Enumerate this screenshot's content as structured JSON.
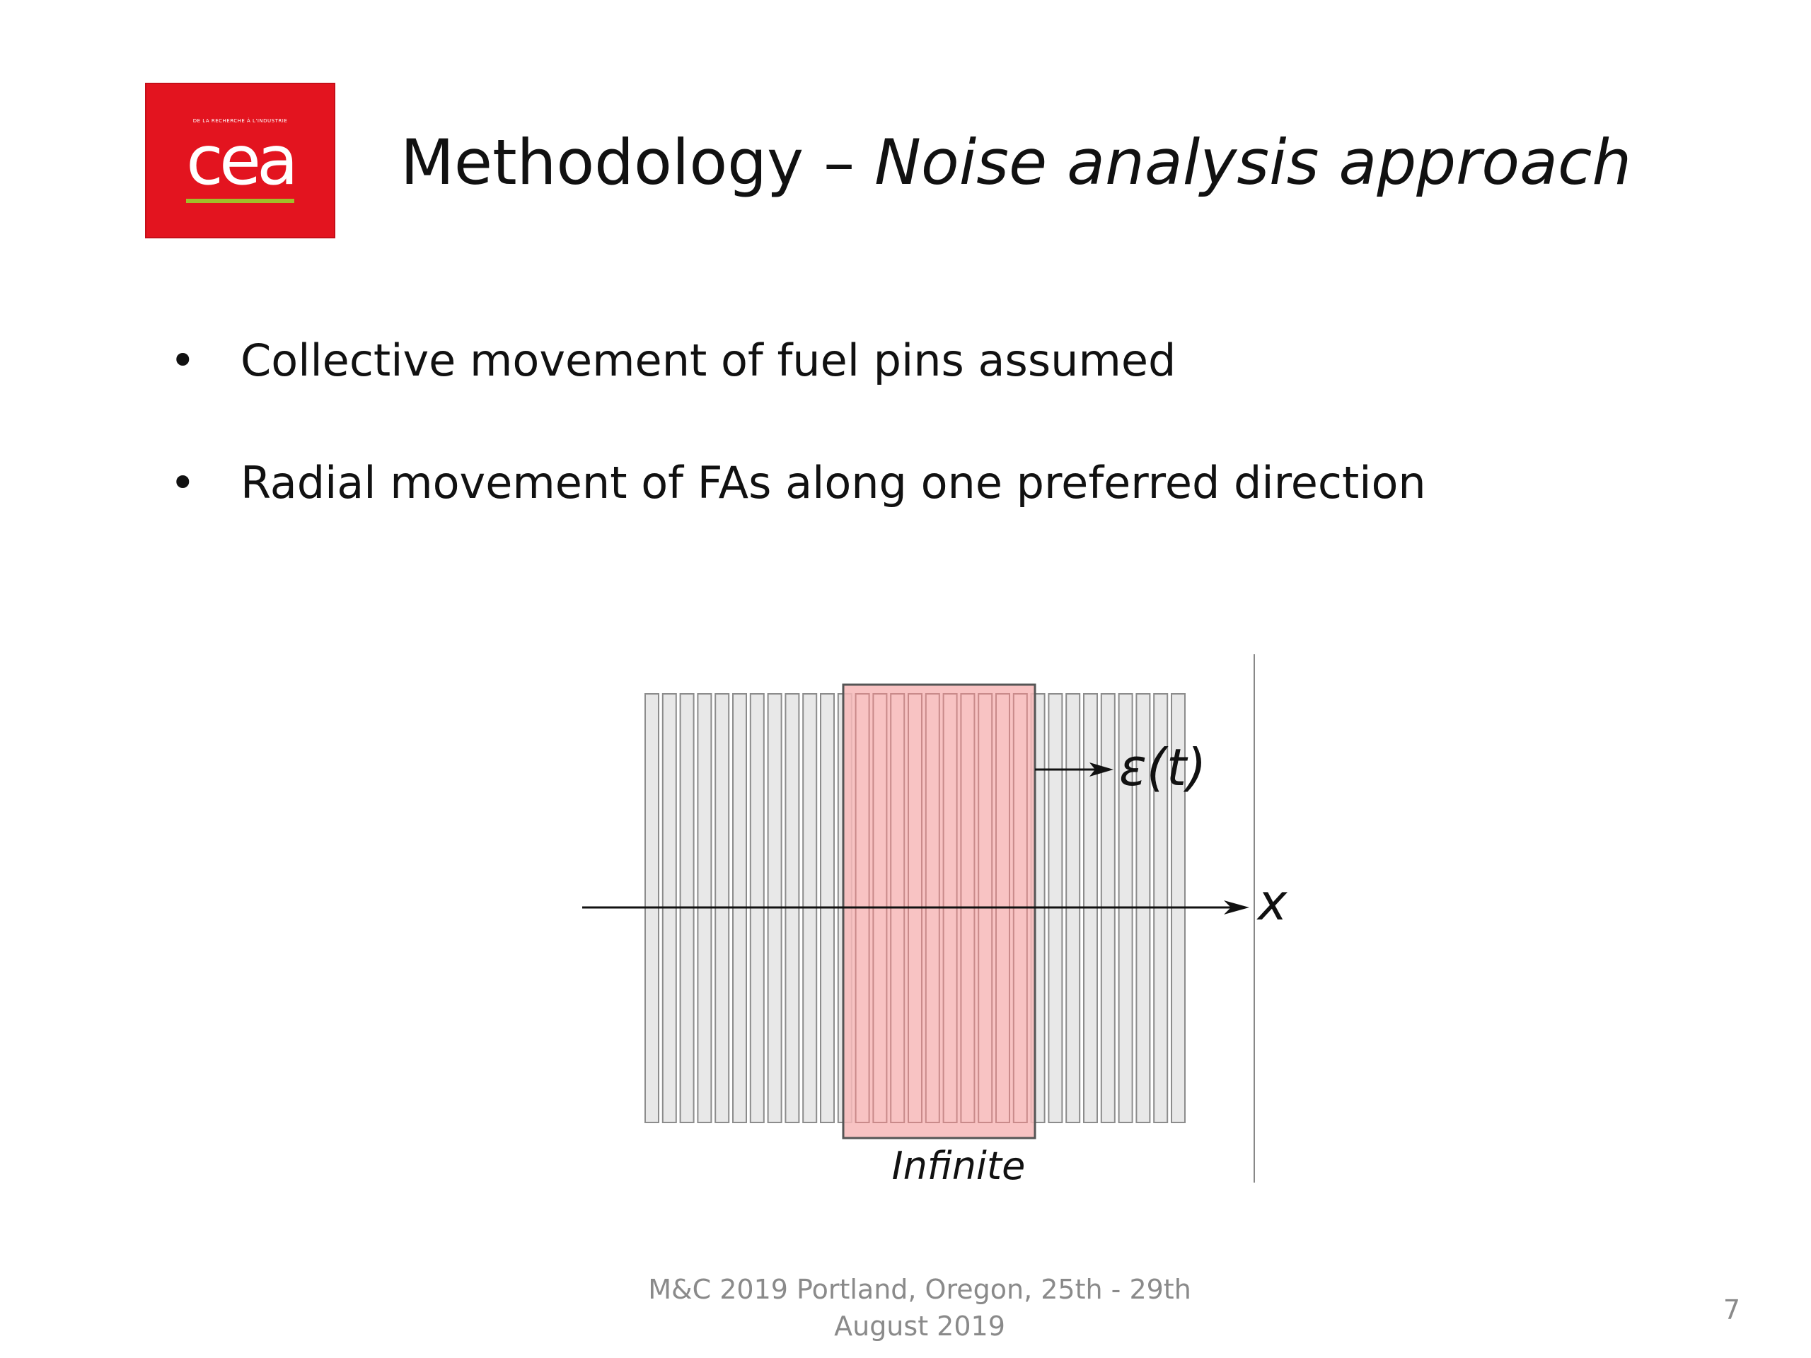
{
  "logo": {
    "text": "cea",
    "tagline": "DE LA RECHERCHE À L'INDUSTRIE",
    "background_color": "#e3141f",
    "accent_color": "#9fbf2a"
  },
  "title": {
    "main": "Methodology – ",
    "italic": "Noise analysis approach"
  },
  "bullets": [
    {
      "symbol": "•",
      "text": "Collective movement of fuel pins assumed"
    },
    {
      "symbol": "•",
      "text": "Radial movement of FAs along one preferred direction"
    }
  ],
  "diagram": {
    "displacement_label": "ε(t)",
    "axis_label": "x",
    "region_label": "Infinite",
    "pin_color": "#e8e8e8",
    "highlight_color": "#f7b8b8"
  },
  "footer": {
    "line1": "M&C 2019 Portland, Oregon, 25th - 29th",
    "line2": "August 2019"
  },
  "page_number": "7"
}
